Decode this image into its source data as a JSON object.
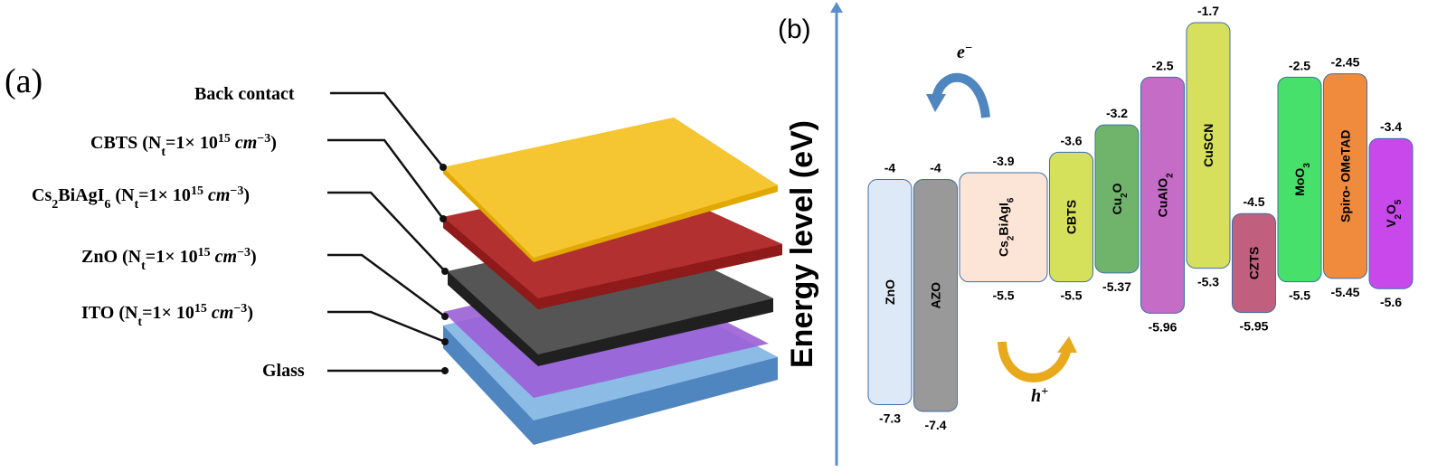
{
  "panel_a": {
    "label": "(a)",
    "layers": [
      {
        "label": [
          {
            "t": "Back contact"
          }
        ]
      },
      {
        "label": [
          {
            "t": "CBTS (N"
          },
          {
            "t": "t",
            "style": "sub"
          },
          {
            "t": "=1× 10"
          },
          {
            "t": "15",
            "style": "sup"
          },
          {
            "t": " "
          },
          {
            "t": "cm",
            "style": "it"
          },
          {
            "t": "−3",
            "style": "sup"
          },
          {
            "t": ")"
          }
        ]
      },
      {
        "label": [
          {
            "t": "Cs"
          },
          {
            "t": "2",
            "style": "sub"
          },
          {
            "t": "BiAgI"
          },
          {
            "t": "6",
            "style": "sub"
          },
          {
            "t": " (N"
          },
          {
            "t": "t",
            "style": "sub"
          },
          {
            "t": "=1× 10"
          },
          {
            "t": "15",
            "style": "sup"
          },
          {
            "t": " "
          },
          {
            "t": "cm",
            "style": "it"
          },
          {
            "t": "−3",
            "style": "sup"
          },
          {
            "t": ")"
          }
        ]
      },
      {
        "label": [
          {
            "t": "ZnO (N"
          },
          {
            "t": "t",
            "style": "sub"
          },
          {
            "t": "=1× 10"
          },
          {
            "t": "15",
            "style": "sup"
          },
          {
            "t": " "
          },
          {
            "t": "cm",
            "style": "it"
          },
          {
            "t": "−3",
            "style": "sup"
          },
          {
            "t": ")"
          }
        ]
      },
      {
        "label": [
          {
            "t": "ITO (N"
          },
          {
            "t": "t",
            "style": "sub"
          },
          {
            "t": "=1× 10"
          },
          {
            "t": "15",
            "style": "sup"
          },
          {
            "t": " "
          },
          {
            "t": "cm",
            "style": "it"
          },
          {
            "t": "−3",
            "style": "sup"
          },
          {
            "t": ")"
          }
        ]
      },
      {
        "label": [
          {
            "t": "Glass"
          }
        ]
      }
    ]
  },
  "panel_b": {
    "label": "(b)",
    "axis_label": "Energy level (eV)",
    "electron": [
      {
        "t": "e"
      },
      {
        "t": "−",
        "style": "sup"
      }
    ],
    "hole": [
      {
        "t": "h"
      },
      {
        "t": "+",
        "style": "sup"
      }
    ],
    "materials": [
      {
        "name": [
          {
            "t": "ZnO"
          }
        ],
        "top": -4,
        "bottom": -7.3,
        "color": "#dde9f6"
      },
      {
        "name": [
          {
            "t": "AZO"
          }
        ],
        "top": -4,
        "bottom": -7.4,
        "color": "#999999"
      },
      {
        "name": [
          {
            "t": "Cs"
          },
          {
            "t": "2",
            "style": "sub"
          },
          {
            "t": "BiAgI"
          },
          {
            "t": "6",
            "style": "sub"
          }
        ],
        "top": -3.9,
        "bottom": -5.5,
        "color": "#fce4d6"
      },
      {
        "name": [
          {
            "t": "CBTS"
          }
        ],
        "top": -3.6,
        "bottom": -5.5,
        "color": "#d5e05b"
      },
      {
        "name": [
          {
            "t": "Cu"
          },
          {
            "t": "2",
            "style": "sub"
          },
          {
            "t": "O"
          }
        ],
        "top": -3.2,
        "bottom": -5.37,
        "color": "#70b46c"
      },
      {
        "name": [
          {
            "t": "CuAlO"
          },
          {
            "t": "2",
            "style": "sub"
          }
        ],
        "top": -2.5,
        "bottom": -5.96,
        "color": "#c46cc6"
      },
      {
        "name": [
          {
            "t": "CuSCN"
          }
        ],
        "top": -1.7,
        "bottom": -5.3,
        "color": "#d6e05c"
      },
      {
        "name": [
          {
            "t": "CZTS"
          }
        ],
        "top": -4.5,
        "bottom": -5.95,
        "color": "#c0607e"
      },
      {
        "name": [
          {
            "t": "MoO"
          },
          {
            "t": "3",
            "style": "sub"
          }
        ],
        "top": -2.5,
        "bottom": -5.5,
        "color": "#46e06b"
      },
      {
        "name": [
          {
            "t": "Spiro- OMeTAD"
          }
        ],
        "top": -2.45,
        "bottom": -5.45,
        "color": "#f08a3c"
      },
      {
        "name": [
          {
            "t": "V"
          },
          {
            "t": "2",
            "style": "sub"
          },
          {
            "t": "O"
          },
          {
            "t": "5",
            "style": "sub"
          }
        ],
        "top": -3.4,
        "bottom": -5.6,
        "color": "#c948ec"
      }
    ]
  }
}
